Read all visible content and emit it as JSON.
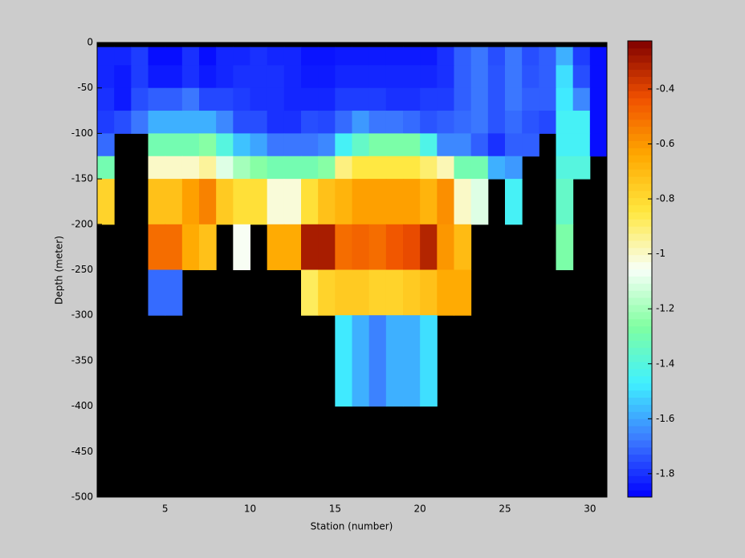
{
  "chart_data": {
    "type": "heatmap",
    "xlabel": "Station (number)",
    "ylabel": "Depth (meter)",
    "xlim": [
      1,
      31
    ],
    "ylim": [
      -500,
      0
    ],
    "xticks": [
      5,
      10,
      15,
      20,
      25,
      30
    ],
    "yticks": [
      0,
      -50,
      -100,
      -150,
      -200,
      -250,
      -300,
      -350,
      -400,
      -450,
      -500
    ],
    "xedges": [
      1,
      2,
      3,
      4,
      5,
      6,
      7,
      8,
      9,
      10,
      11,
      12,
      13,
      14,
      15,
      16,
      17,
      18,
      19,
      20,
      21,
      22,
      23,
      24,
      25,
      26,
      27,
      28,
      29,
      30,
      31
    ],
    "yedges": [
      -5,
      -25,
      -50,
      -75,
      -100,
      -125,
      -150,
      -200,
      -250,
      -300,
      -400
    ],
    "z": [
      [
        -1.82,
        -1.82,
        -1.78,
        -1.86,
        -1.86,
        -1.8,
        -1.86,
        -1.82,
        -1.82,
        -1.8,
        -1.82,
        -1.82,
        -1.85,
        -1.85,
        -1.84,
        -1.84,
        -1.84,
        -1.84,
        -1.84,
        -1.84,
        -1.8,
        -1.72,
        -1.68,
        -1.75,
        -1.68,
        -1.75,
        -1.72,
        -1.58,
        -1.78,
        -1.86
      ],
      [
        -1.82,
        -1.84,
        -1.78,
        -1.84,
        -1.84,
        -1.8,
        -1.84,
        -1.82,
        -1.8,
        -1.8,
        -1.8,
        -1.82,
        -1.84,
        -1.84,
        -1.82,
        -1.82,
        -1.82,
        -1.82,
        -1.82,
        -1.82,
        -1.8,
        -1.72,
        -1.68,
        -1.74,
        -1.68,
        -1.74,
        -1.72,
        -1.5,
        -1.75,
        -1.86
      ],
      [
        -1.8,
        -1.84,
        -1.75,
        -1.72,
        -1.72,
        -1.68,
        -1.76,
        -1.76,
        -1.78,
        -1.8,
        -1.8,
        -1.82,
        -1.82,
        -1.82,
        -1.78,
        -1.78,
        -1.78,
        -1.8,
        -1.8,
        -1.78,
        -1.78,
        -1.72,
        -1.68,
        -1.74,
        -1.68,
        -1.72,
        -1.72,
        -1.48,
        -1.65,
        -1.86
      ],
      [
        -1.78,
        -1.75,
        -1.68,
        -1.58,
        -1.58,
        -1.58,
        -1.58,
        -1.65,
        -1.75,
        -1.75,
        -1.8,
        -1.8,
        -1.75,
        -1.76,
        -1.7,
        -1.62,
        -1.68,
        -1.68,
        -1.7,
        -1.74,
        -1.72,
        -1.7,
        -1.68,
        -1.74,
        -1.7,
        -1.74,
        -1.76,
        -1.45,
        -1.45,
        -1.86
      ],
      [
        -1.7,
        null,
        null,
        -1.3,
        -1.3,
        -1.3,
        -1.25,
        -1.4,
        -1.55,
        -1.6,
        -1.68,
        -1.68,
        -1.68,
        -1.65,
        -1.45,
        -1.35,
        -1.28,
        -1.28,
        -1.28,
        -1.42,
        -1.65,
        -1.65,
        -1.72,
        -1.8,
        -1.72,
        -1.72,
        null,
        -1.45,
        -1.45,
        -1.86
      ],
      [
        -1.3,
        null,
        null,
        -1.0,
        -1.0,
        -1.0,
        -0.95,
        -1.1,
        -1.2,
        -1.25,
        -1.3,
        -1.3,
        -1.3,
        -1.25,
        -0.92,
        -0.85,
        -0.85,
        -0.85,
        -0.85,
        -0.9,
        -0.98,
        -1.3,
        -1.3,
        -1.58,
        -1.62,
        null,
        null,
        -1.4,
        -1.4,
        null
      ],
      [
        -0.78,
        null,
        null,
        -0.72,
        -0.72,
        -0.62,
        -0.55,
        -0.75,
        -0.82,
        -0.82,
        -1.02,
        -1.02,
        -0.82,
        -0.72,
        -0.68,
        -0.62,
        -0.62,
        -0.62,
        -0.62,
        -0.68,
        -0.58,
        -1.0,
        -1.1,
        null,
        -1.45,
        null,
        null,
        -1.35,
        null,
        null
      ],
      [
        null,
        null,
        null,
        -0.5,
        -0.5,
        -0.65,
        -0.72,
        null,
        -1.05,
        null,
        -0.65,
        -0.65,
        -0.3,
        -0.3,
        -0.5,
        -0.48,
        -0.5,
        -0.45,
        -0.42,
        -0.32,
        -0.6,
        -0.7,
        null,
        null,
        null,
        null,
        null,
        -1.28,
        null,
        null
      ],
      [
        null,
        null,
        null,
        -1.7,
        -1.7,
        null,
        null,
        null,
        null,
        null,
        null,
        null,
        -0.88,
        -0.78,
        -0.75,
        -0.75,
        -0.78,
        -0.78,
        -0.75,
        -0.72,
        -0.65,
        -0.65,
        null,
        null,
        null,
        null,
        null,
        null,
        null,
        null
      ],
      [
        null,
        null,
        null,
        null,
        null,
        null,
        null,
        null,
        null,
        null,
        null,
        null,
        null,
        null,
        -1.48,
        -1.58,
        -1.66,
        -1.58,
        -1.58,
        -1.5,
        null,
        null,
        null,
        null,
        null,
        null,
        null,
        null,
        null,
        null
      ]
    ],
    "nan_color": "#000000",
    "clim": [
      -1.885,
      -0.225
    ],
    "cticks": [
      -0.4,
      -0.6,
      -0.8,
      -1,
      -1.2,
      -1.4,
      -1.6,
      -1.8
    ],
    "colormap": [
      "#0000ff",
      "#3c78ff",
      "#40f0ff",
      "#80ffa0",
      "#f8fff8",
      "#ffe840",
      "#ffa800",
      "#f05000",
      "#800000"
    ]
  }
}
